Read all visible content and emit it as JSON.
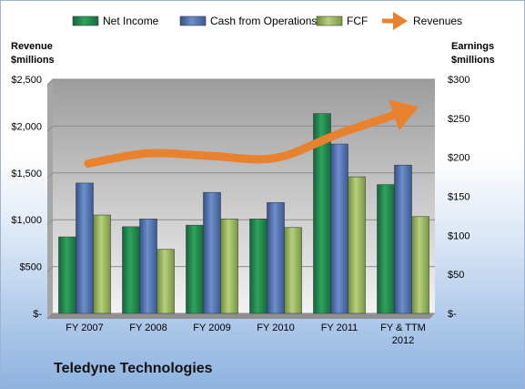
{
  "company": "Teledyne Technologies",
  "chart_data": {
    "type": "bar",
    "categories": [
      "FY 2007",
      "FY 2008",
      "FY 2009",
      "FY 2010",
      "FY 2011",
      "FY & TTM 2012"
    ],
    "series": [
      {
        "name": "Net Income",
        "axis": "right",
        "color": "#1f8a48",
        "values": [
          98,
          111,
          113,
          121,
          256,
          165
        ]
      },
      {
        "name": "Cash from Operations",
        "axis": "right",
        "color": "#4a6fae",
        "values": [
          167,
          121,
          155,
          142,
          217,
          190
        ]
      },
      {
        "name": "FCF",
        "axis": "right",
        "color": "#94b45a",
        "values": [
          126,
          82,
          121,
          110,
          175,
          124
        ]
      },
      {
        "name": "Revenues",
        "axis": "left",
        "type": "line",
        "color": "#e8822e",
        "values": [
          1600,
          1710,
          1680,
          1660,
          1920,
          2150
        ]
      }
    ],
    "left_axis": {
      "title_lines": [
        "Revenue",
        "$millions"
      ],
      "range": [
        0,
        2500
      ],
      "ticks": [
        0,
        500,
        1000,
        1500,
        2000,
        2500
      ],
      "tick_labels": [
        "$-",
        "$500",
        "$1,000",
        "$1,500",
        "$2,000",
        "$2,500"
      ]
    },
    "right_axis": {
      "title_lines": [
        "Earnings",
        "$millions"
      ],
      "range": [
        0,
        300
      ],
      "ticks": [
        0,
        50,
        100,
        150,
        200,
        250,
        300
      ],
      "tick_labels": [
        "$-",
        "$50",
        "$100",
        "$150",
        "$200",
        "$250",
        "$300"
      ]
    },
    "category_labels": [
      [
        "FY 2007"
      ],
      [
        "FY 2008"
      ],
      [
        "FY 2009"
      ],
      [
        "FY 2010"
      ],
      [
        "FY 2011"
      ],
      [
        "FY & TTM",
        "2012"
      ]
    ],
    "grid": true,
    "legend": "top"
  }
}
